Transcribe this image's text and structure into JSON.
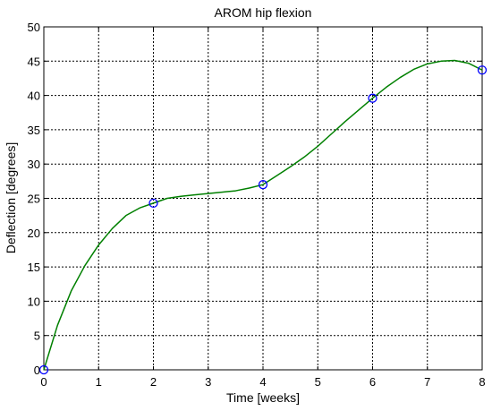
{
  "chart_data": {
    "type": "line",
    "title": "AROM hip flexion",
    "xlabel": "Time [weeks]",
    "ylabel": "Deflection [degrees]",
    "xlim": [
      0,
      8
    ],
    "ylim": [
      0,
      50
    ],
    "x_ticks": [
      "0",
      "1",
      "2",
      "3",
      "4",
      "5",
      "6",
      "7",
      "8"
    ],
    "y_ticks": [
      "0",
      "5",
      "10",
      "15",
      "20",
      "25",
      "30",
      "35",
      "40",
      "45",
      "50"
    ],
    "grid": true,
    "series": [
      {
        "style": "line",
        "color": "#008000",
        "x": [
          0,
          0.25,
          0.5,
          0.75,
          1,
          1.25,
          1.5,
          1.75,
          2,
          2.25,
          2.5,
          2.75,
          3,
          3.25,
          3.5,
          3.75,
          4,
          4.25,
          4.5,
          4.75,
          5,
          5.25,
          5.5,
          5.75,
          6,
          6.25,
          6.5,
          6.75,
          7,
          7.25,
          7.5,
          7.75,
          8
        ],
        "values": [
          0,
          6.5,
          11.5,
          15.2,
          18.2,
          20.6,
          22.5,
          23.6,
          24.3,
          25.0,
          25.3,
          25.5,
          25.7,
          25.9,
          26.1,
          26.5,
          27.0,
          28.3,
          29.6,
          31.0,
          32.6,
          34.4,
          36.2,
          37.9,
          39.6,
          41.2,
          42.6,
          43.8,
          44.6,
          45.0,
          45.1,
          44.7,
          43.7
        ]
      },
      {
        "style": "markers",
        "marker": "circle",
        "color": "#0000ff",
        "x": [
          0,
          2,
          4,
          6,
          8
        ],
        "values": [
          0,
          24.3,
          27.0,
          39.6,
          43.7
        ]
      }
    ]
  }
}
